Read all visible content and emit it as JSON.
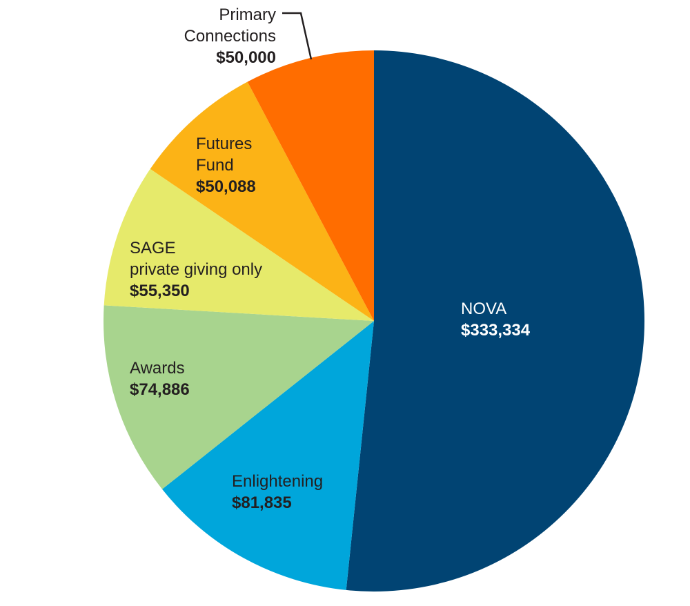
{
  "chart_data": {
    "type": "pie",
    "start_angle": "12 o'clock",
    "direction": "clockwise",
    "slices": [
      {
        "label_lines": [
          "NOVA"
        ],
        "value": 333334,
        "value_label": "$333,334",
        "color": "#014473",
        "text_color": "#ffffff"
      },
      {
        "label_lines": [
          "Enlightening"
        ],
        "value": 81835,
        "value_label": "$81,835",
        "color": "#00a6db",
        "text_color": "#231f20"
      },
      {
        "label_lines": [
          "Awards"
        ],
        "value": 74886,
        "value_label": "$74,886",
        "color": "#a8d48e",
        "text_color": "#231f20"
      },
      {
        "label_lines": [
          "SAGE",
          "private giving only"
        ],
        "value": 55350,
        "value_label": "$55,350",
        "color": "#e6ea6b",
        "text_color": "#231f20"
      },
      {
        "label_lines": [
          "Futures",
          "Fund"
        ],
        "value": 50088,
        "value_label": "$50,088",
        "color": "#fcb316",
        "text_color": "#231f20"
      },
      {
        "label_lines": [
          "Primary",
          "Connections"
        ],
        "value": 50000,
        "value_label": "$50,000",
        "color": "#ff6d00",
        "text_color": "#231f20",
        "callout": true
      }
    ]
  }
}
